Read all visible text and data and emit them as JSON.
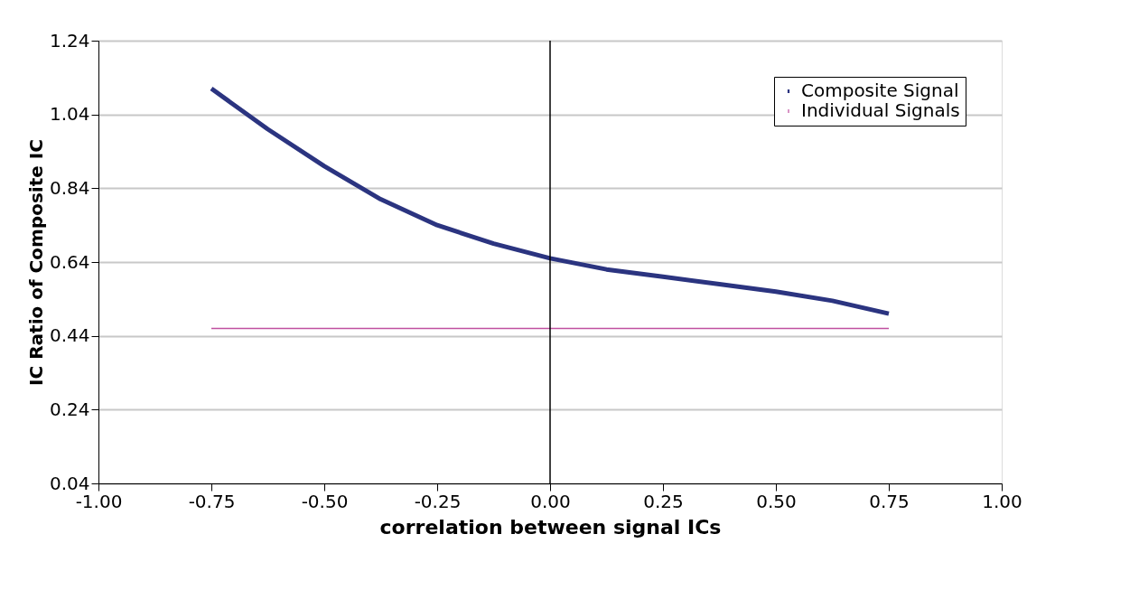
{
  "chart_data": {
    "type": "line",
    "xlabel": "correlation between signal ICs",
    "ylabel": "IC Ratio of Composite IC",
    "xlim": [
      -1,
      1
    ],
    "ylim": [
      0.04,
      1.24
    ],
    "xticks": [
      {
        "value": -1,
        "label": "-1.00"
      },
      {
        "value": -0.75,
        "label": "-0.75"
      },
      {
        "value": -0.5,
        "label": "-0.50"
      },
      {
        "value": -0.25,
        "label": "-0.25"
      },
      {
        "value": 0,
        "label": "0.00"
      },
      {
        "value": 0.25,
        "label": "0.25"
      },
      {
        "value": 0.5,
        "label": "0.50"
      },
      {
        "value": 0.75,
        "label": "0.75"
      },
      {
        "value": 1,
        "label": "1.00"
      }
    ],
    "yticks": [
      0.04,
      0.24,
      0.44,
      0.64,
      0.84,
      1.04,
      1.24
    ],
    "grid": "y",
    "legend": "top right",
    "marker": "none",
    "line_style": "solid",
    "ref_lines": [
      {
        "axis": "x",
        "value": 0,
        "color": "#000000"
      }
    ],
    "series": [
      {
        "name": "Composite Signal",
        "color": "#2b3480",
        "x": [
          -0.75,
          -0.625,
          -0.5,
          -0.375,
          -0.25,
          -0.125,
          0,
          0.125,
          0.25,
          0.375,
          0.5,
          0.625,
          0.75
        ],
        "values": [
          1.11,
          1.0,
          0.9,
          0.81,
          0.74,
          0.69,
          0.65,
          0.62,
          0.6,
          0.58,
          0.56,
          0.535,
          0.5
        ]
      },
      {
        "name": "Individual Signals",
        "color": "#c050a0",
        "x": [
          -0.75,
          0.75
        ],
        "values": [
          0.46,
          0.46
        ]
      }
    ]
  }
}
